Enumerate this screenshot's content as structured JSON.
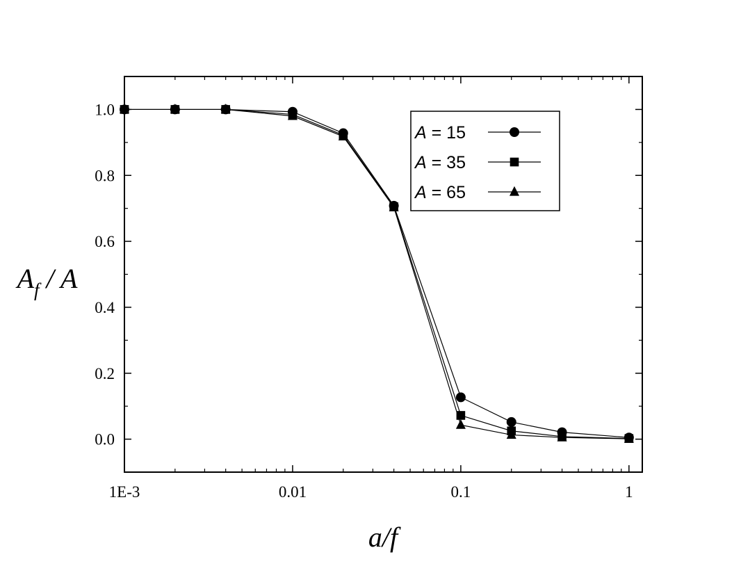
{
  "chart_data": {
    "type": "line",
    "xlabel": "a/f",
    "ylabel": "A",
    "ylabel_subscript": "f",
    "ylabel_tail": " / A",
    "x_scale": "log",
    "xlim": [
      0.001,
      1.2
    ],
    "ylim": [
      -0.1,
      1.1
    ],
    "x_ticks": [
      {
        "value": 0.001,
        "label": "1E-3"
      },
      {
        "value": 0.01,
        "label": "0.01"
      },
      {
        "value": 0.1,
        "label": "0.1"
      },
      {
        "value": 1,
        "label": "1"
      }
    ],
    "y_ticks": [
      {
        "value": 0.0,
        "label": "0.0"
      },
      {
        "value": 0.2,
        "label": "0.2"
      },
      {
        "value": 0.4,
        "label": "0.4"
      },
      {
        "value": 0.6,
        "label": "0.6"
      },
      {
        "value": 0.8,
        "label": "0.8"
      },
      {
        "value": 1.0,
        "label": "1.0"
      }
    ],
    "grid": false,
    "legend_position": "top-right",
    "x": [
      0.001,
      0.002,
      0.004,
      0.01,
      0.02,
      0.04,
      0.1,
      0.2,
      0.4,
      1
    ],
    "series": [
      {
        "name": "15",
        "name_prefix": "A =",
        "marker": "circle",
        "values": [
          1.0,
          1.0,
          1.0,
          0.993,
          0.928,
          0.708,
          0.127,
          0.052,
          0.021,
          0.005
        ]
      },
      {
        "name": "35",
        "name_prefix": "A =",
        "marker": "square",
        "values": [
          1.0,
          1.0,
          1.0,
          0.985,
          0.922,
          0.705,
          0.072,
          0.025,
          0.008,
          0.002
        ]
      },
      {
        "name": "65",
        "name_prefix": "A =",
        "marker": "triangle",
        "values": [
          1.0,
          1.0,
          1.0,
          0.98,
          0.918,
          0.703,
          0.043,
          0.013,
          0.005,
          0.001
        ]
      }
    ],
    "line_color": "#000000",
    "marker_color": "#000000"
  }
}
